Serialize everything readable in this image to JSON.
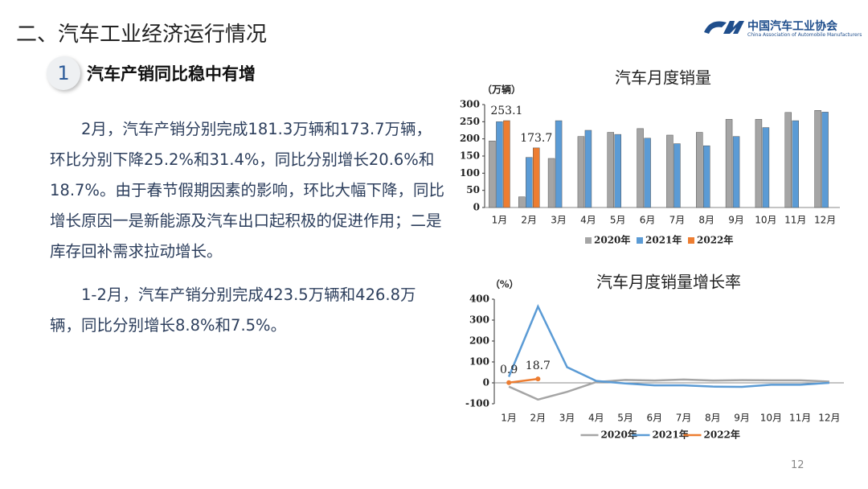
{
  "header": {
    "title": "二、汽车工业经济运行情况",
    "logo_cn": "中国汽车工业协会",
    "logo_en": "China Association of Automobile Manufacturers"
  },
  "section": {
    "number": "1",
    "heading": "汽车产销同比稳中有增"
  },
  "paragraphs": [
    "2月，汽车产销分别完成181.3万辆和173.7万辆，环比分别下降25.2%和31.4%，同比分别增长20.6%和18.7%。由于春节假期因素的影响，环比大幅下降，同比增长原因一是新能源及汽车出口起积极的促进作用；二是库存回补需求拉动增长。",
    "1-2月，汽车产销分别完成423.5万辆和426.8万辆，同比分别增长8.8%和7.5%。"
  ],
  "page_number": "12",
  "chart_data": [
    {
      "type": "bar",
      "title": "汽车月度销量",
      "y_label": "（万辆）",
      "categories": [
        "1月",
        "2月",
        "3月",
        "4月",
        "5月",
        "6月",
        "7月",
        "8月",
        "9月",
        "10月",
        "11月",
        "12月"
      ],
      "series": [
        {
          "name": "2020年",
          "color": "#a5a5a5",
          "values": [
            194,
            31,
            143,
            207,
            219,
            230,
            211,
            219,
            257,
            257,
            277,
            283
          ]
        },
        {
          "name": "2021年",
          "color": "#5b9bd5",
          "values": [
            250,
            146,
            253,
            225,
            213,
            202,
            186,
            180,
            207,
            233,
            253,
            278
          ]
        },
        {
          "name": "2022年",
          "color": "#ed7d31",
          "data_labels": true,
          "values": [
            253.1,
            173.7,
            null,
            null,
            null,
            null,
            null,
            null,
            null,
            null,
            null,
            null
          ]
        }
      ],
      "ylim": [
        0,
        300
      ],
      "yticks": [
        0,
        50,
        100,
        150,
        200,
        250,
        300
      ],
      "legend": "bottom"
    },
    {
      "type": "line",
      "title": "汽车月度销量增长率",
      "y_label": "（%）",
      "categories": [
        "1月",
        "2月",
        "3月",
        "4月",
        "5月",
        "6月",
        "7月",
        "8月",
        "9月",
        "10月",
        "11月",
        "12月"
      ],
      "series": [
        {
          "name": "2020年",
          "color": "#a5a5a5",
          "values": [
            -18,
            -80,
            -43,
            4,
            14,
            11,
            16,
            11,
            13,
            12,
            12,
            6
          ]
        },
        {
          "name": "2021年",
          "color": "#5b9bd5",
          "values": [
            29,
            365,
            75,
            9,
            -3,
            -12,
            -12,
            -18,
            -19,
            -9,
            -9,
            0
          ]
        },
        {
          "name": "2022年",
          "color": "#ed7d31",
          "markers": true,
          "data_labels": true,
          "values": [
            0.9,
            18.7,
            null,
            null,
            null,
            null,
            null,
            null,
            null,
            null,
            null,
            null
          ]
        }
      ],
      "ylim": [
        -100,
        400
      ],
      "yticks": [
        -100,
        0,
        100,
        200,
        300,
        400
      ],
      "legend": "bottom"
    }
  ]
}
